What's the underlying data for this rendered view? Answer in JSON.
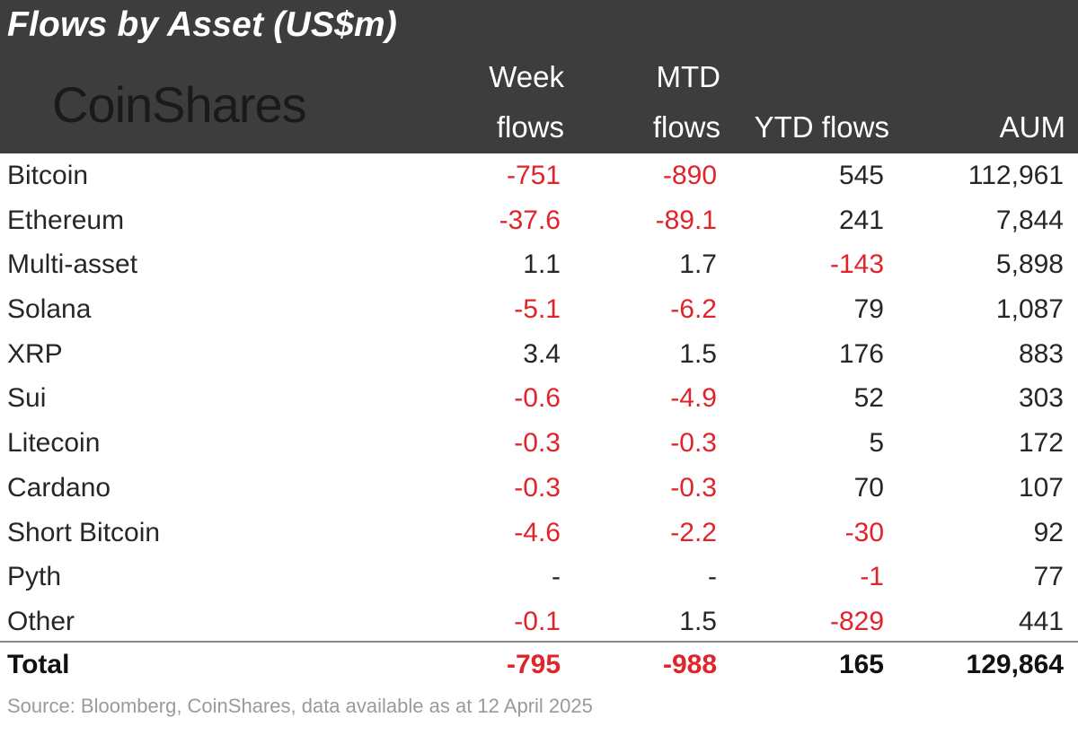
{
  "title": "Flows by Asset (US$m)",
  "logo_text": "CoinShares",
  "columns": {
    "week": [
      "Week",
      "flows"
    ],
    "mtd": [
      "MTD",
      "flows"
    ],
    "ytd": "YTD flows",
    "aum": "AUM"
  },
  "rows": [
    {
      "asset": "Bitcoin",
      "week": "-751",
      "mtd": "-890",
      "ytd": "545",
      "aum": "112,961"
    },
    {
      "asset": "Ethereum",
      "week": "-37.6",
      "mtd": "-89.1",
      "ytd": "241",
      "aum": "7,844"
    },
    {
      "asset": "Multi-asset",
      "week": "1.1",
      "mtd": "1.7",
      "ytd": "-143",
      "aum": "5,898"
    },
    {
      "asset": "Solana",
      "week": "-5.1",
      "mtd": "-6.2",
      "ytd": "79",
      "aum": "1,087"
    },
    {
      "asset": "XRP",
      "week": "3.4",
      "mtd": "1.5",
      "ytd": "176",
      "aum": "883"
    },
    {
      "asset": "Sui",
      "week": "-0.6",
      "mtd": "-4.9",
      "ytd": "52",
      "aum": "303"
    },
    {
      "asset": "Litecoin",
      "week": "-0.3",
      "mtd": "-0.3",
      "ytd": "5",
      "aum": "172"
    },
    {
      "asset": "Cardano",
      "week": "-0.3",
      "mtd": "-0.3",
      "ytd": "70",
      "aum": "107"
    },
    {
      "asset": "Short Bitcoin",
      "week": "-4.6",
      "mtd": "-2.2",
      "ytd": "-30",
      "aum": "92"
    },
    {
      "asset": "Pyth",
      "week": "-",
      "mtd": "-",
      "ytd": "-1",
      "aum": "77"
    },
    {
      "asset": "Other",
      "week": "-0.1",
      "mtd": "1.5",
      "ytd": "-829",
      "aum": "441"
    }
  ],
  "total": {
    "asset": "Total",
    "week": "-795",
    "mtd": "-988",
    "ytd": "165",
    "aum": "129,864"
  },
  "source": "Source: Bloomberg, CoinShares, data available as at 12 April 2025",
  "colors": {
    "negative": "#e0242a",
    "header_bg": "#3d3d3d",
    "text": "#262626"
  },
  "chart_data": {
    "type": "table",
    "title": "Flows by Asset (US$m)",
    "columns": [
      "Week flows",
      "MTD flows",
      "YTD flows",
      "AUM"
    ],
    "row_labels": [
      "Bitcoin",
      "Ethereum",
      "Multi-asset",
      "Solana",
      "XRP",
      "Sui",
      "Litecoin",
      "Cardano",
      "Short Bitcoin",
      "Pyth",
      "Other",
      "Total"
    ],
    "values": [
      [
        -751,
        -890,
        545,
        112961
      ],
      [
        -37.6,
        -89.1,
        241,
        7844
      ],
      [
        1.1,
        1.7,
        -143,
        5898
      ],
      [
        -5.1,
        -6.2,
        79,
        1087
      ],
      [
        3.4,
        1.5,
        176,
        883
      ],
      [
        -0.6,
        -4.9,
        52,
        303
      ],
      [
        -0.3,
        -0.3,
        5,
        172
      ],
      [
        -0.3,
        -0.3,
        70,
        107
      ],
      [
        -4.6,
        -2.2,
        -30,
        92
      ],
      [
        null,
        null,
        -1,
        77
      ],
      [
        -0.1,
        1.5,
        -829,
        441
      ],
      [
        -795,
        -988,
        165,
        129864
      ]
    ]
  }
}
